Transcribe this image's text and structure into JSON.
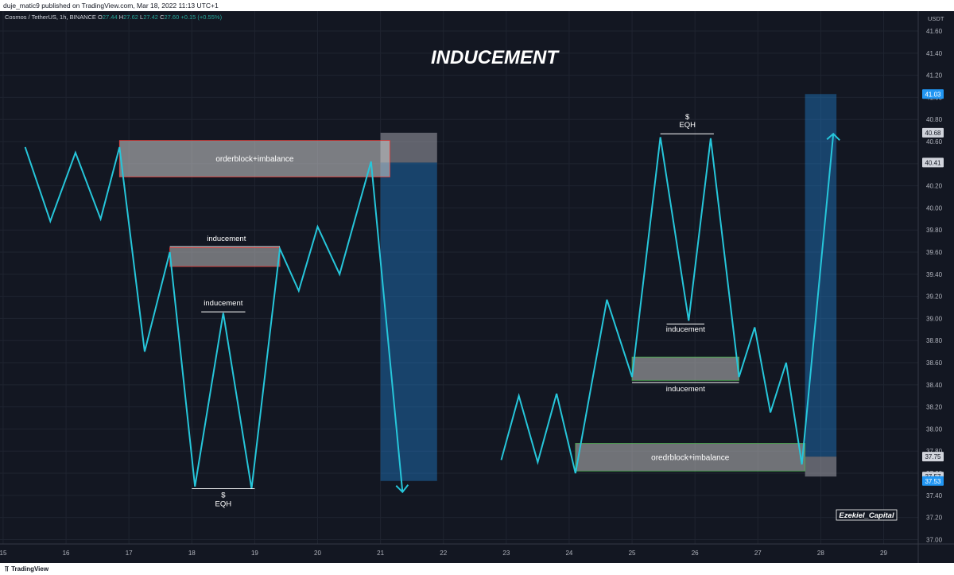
{
  "header": {
    "published_text": "duje_matic9 published on TradingView.com, Mar 18, 2022 11:13 UTC+1"
  },
  "symbol_bar": {
    "symbol": "Cosmos / TetherUS, 1h, BINANCE",
    "o_label": "O",
    "o_value": "27.44",
    "h_label": "H",
    "h_value": "27.62",
    "l_label": "L",
    "l_value": "27.42",
    "c_label": "C",
    "c_value": "27.60",
    "change": "+0.15 (+0.55%)"
  },
  "chart_data": {
    "type": "line",
    "title": "INDUCEMENT",
    "currency": "USDT",
    "x_ticks": [
      "15",
      "16",
      "17",
      "18",
      "19",
      "20",
      "21",
      "22",
      "23",
      "24",
      "25",
      "26",
      "27",
      "28",
      "29"
    ],
    "y_ticks": [
      "41.60",
      "41.40",
      "41.20",
      "41.00",
      "40.80",
      "40.60",
      "40.40",
      "40.20",
      "40.00",
      "39.80",
      "39.60",
      "39.40",
      "39.20",
      "39.00",
      "38.80",
      "38.60",
      "38.40",
      "38.20",
      "38.00",
      "37.80",
      "37.60",
      "37.40",
      "37.20",
      "37.00"
    ],
    "ylim": [
      36.96,
      41.78
    ],
    "xlim": [
      14.95,
      29.55
    ],
    "grid": true,
    "series": [
      {
        "color": "#26c6da",
        "points_left": [
          [
            15.35,
            40.55
          ],
          [
            15.75,
            39.88
          ],
          [
            16.15,
            40.5
          ],
          [
            16.55,
            39.9
          ],
          [
            16.85,
            40.55
          ],
          [
            17.25,
            38.7
          ],
          [
            17.65,
            39.6
          ],
          [
            18.05,
            37.48
          ],
          [
            18.5,
            39.05
          ],
          [
            18.95,
            37.46
          ],
          [
            19.4,
            39.63
          ],
          [
            19.7,
            39.25
          ],
          [
            20.0,
            39.83
          ],
          [
            20.35,
            39.4
          ],
          [
            20.85,
            40.42
          ],
          [
            21.35,
            37.43
          ]
        ],
        "points_right": [
          [
            22.92,
            37.72
          ],
          [
            23.2,
            38.3
          ],
          [
            23.5,
            37.7
          ],
          [
            23.8,
            38.32
          ],
          [
            24.1,
            37.6
          ],
          [
            24.6,
            39.17
          ],
          [
            25.0,
            38.47
          ],
          [
            25.45,
            40.64
          ],
          [
            25.9,
            38.98
          ],
          [
            26.25,
            40.63
          ],
          [
            26.7,
            38.47
          ],
          [
            26.95,
            38.92
          ],
          [
            27.2,
            38.15
          ],
          [
            27.45,
            38.6
          ],
          [
            27.7,
            37.68
          ],
          [
            28.2,
            40.67
          ]
        ]
      }
    ],
    "price_labels": [
      {
        "value": 41.03,
        "text": "41.03",
        "bg": "#2196f3",
        "color": "#ffffff"
      },
      {
        "value": 40.68,
        "text": "40.68",
        "bg": "#d1d4dc",
        "color": "#131722"
      },
      {
        "value": 40.41,
        "text": "40.41",
        "bg": "#d1d4dc",
        "color": "#131722"
      },
      {
        "value": 37.75,
        "text": "37.75",
        "bg": "#d1d4dc",
        "color": "#131722"
      },
      {
        "value": 37.57,
        "text": "37.57",
        "bg": "#d1d4dc",
        "color": "#131722"
      },
      {
        "value": 37.53,
        "text": "37.53",
        "bg": "#2196f3",
        "color": "#ffffff"
      }
    ],
    "zones": [
      {
        "x0": 16.85,
        "x1": 21.15,
        "y0": 40.28,
        "y1": 40.61,
        "fill": "rgba(210,210,210,0.55)",
        "stroke": "#e53935",
        "label": "orderblock+imbalance"
      },
      {
        "x0": 17.65,
        "x1": 19.4,
        "y0": 39.47,
        "y1": 39.64,
        "fill": "rgba(190,190,190,0.55)",
        "stroke": "#e53935",
        "label": ""
      },
      {
        "x0": 25.0,
        "x1": 26.7,
        "y0": 38.44,
        "y1": 38.65,
        "fill": "rgba(190,190,190,0.55)",
        "stroke": "#4caf50",
        "label": ""
      },
      {
        "x0": 24.1,
        "x1": 27.75,
        "y0": 37.62,
        "y1": 37.87,
        "fill": "rgba(190,190,190,0.55)",
        "stroke": "#4caf50",
        "label": "oredrblock+imbalance"
      }
    ],
    "position_boxes": [
      {
        "x0": 21.0,
        "x1": 21.9,
        "entry": 40.41,
        "target": 37.53,
        "stop": 40.68,
        "direction": "short"
      },
      {
        "x0": 27.75,
        "x1": 28.25,
        "entry": 37.75,
        "target": 41.03,
        "stop": 37.57,
        "direction": "long"
      }
    ],
    "annotations": [
      {
        "text": "inducement",
        "x": 18.55,
        "y": 39.7,
        "line": [
          17.65,
          19.4,
          39.65
        ]
      },
      {
        "text": "inducement",
        "x": 18.5,
        "y": 39.12,
        "line": [
          18.15,
          18.85,
          39.06
        ]
      },
      {
        "text": "$",
        "x": 18.5,
        "y": 37.38,
        "line": [
          18.0,
          19.0,
          37.46
        ]
      },
      {
        "text": "EQH",
        "x": 18.5,
        "y": 37.3,
        "line": null
      },
      {
        "text": "$",
        "x": 25.88,
        "y": 40.8,
        "line": null
      },
      {
        "text": "EQH",
        "x": 25.88,
        "y": 40.73,
        "line": [
          25.45,
          26.3,
          40.67
        ]
      },
      {
        "text": "inducement",
        "x": 25.85,
        "y": 38.88,
        "line": [
          25.55,
          26.15,
          38.95
        ]
      },
      {
        "text": "inducement",
        "x": 25.85,
        "y": 38.34,
        "line": [
          25.0,
          26.7,
          38.42
        ]
      }
    ],
    "watermark": "Ezekiel_Capital"
  },
  "footer": {
    "brand": "TradingView",
    "icon": "tradingview-logo-icon"
  }
}
